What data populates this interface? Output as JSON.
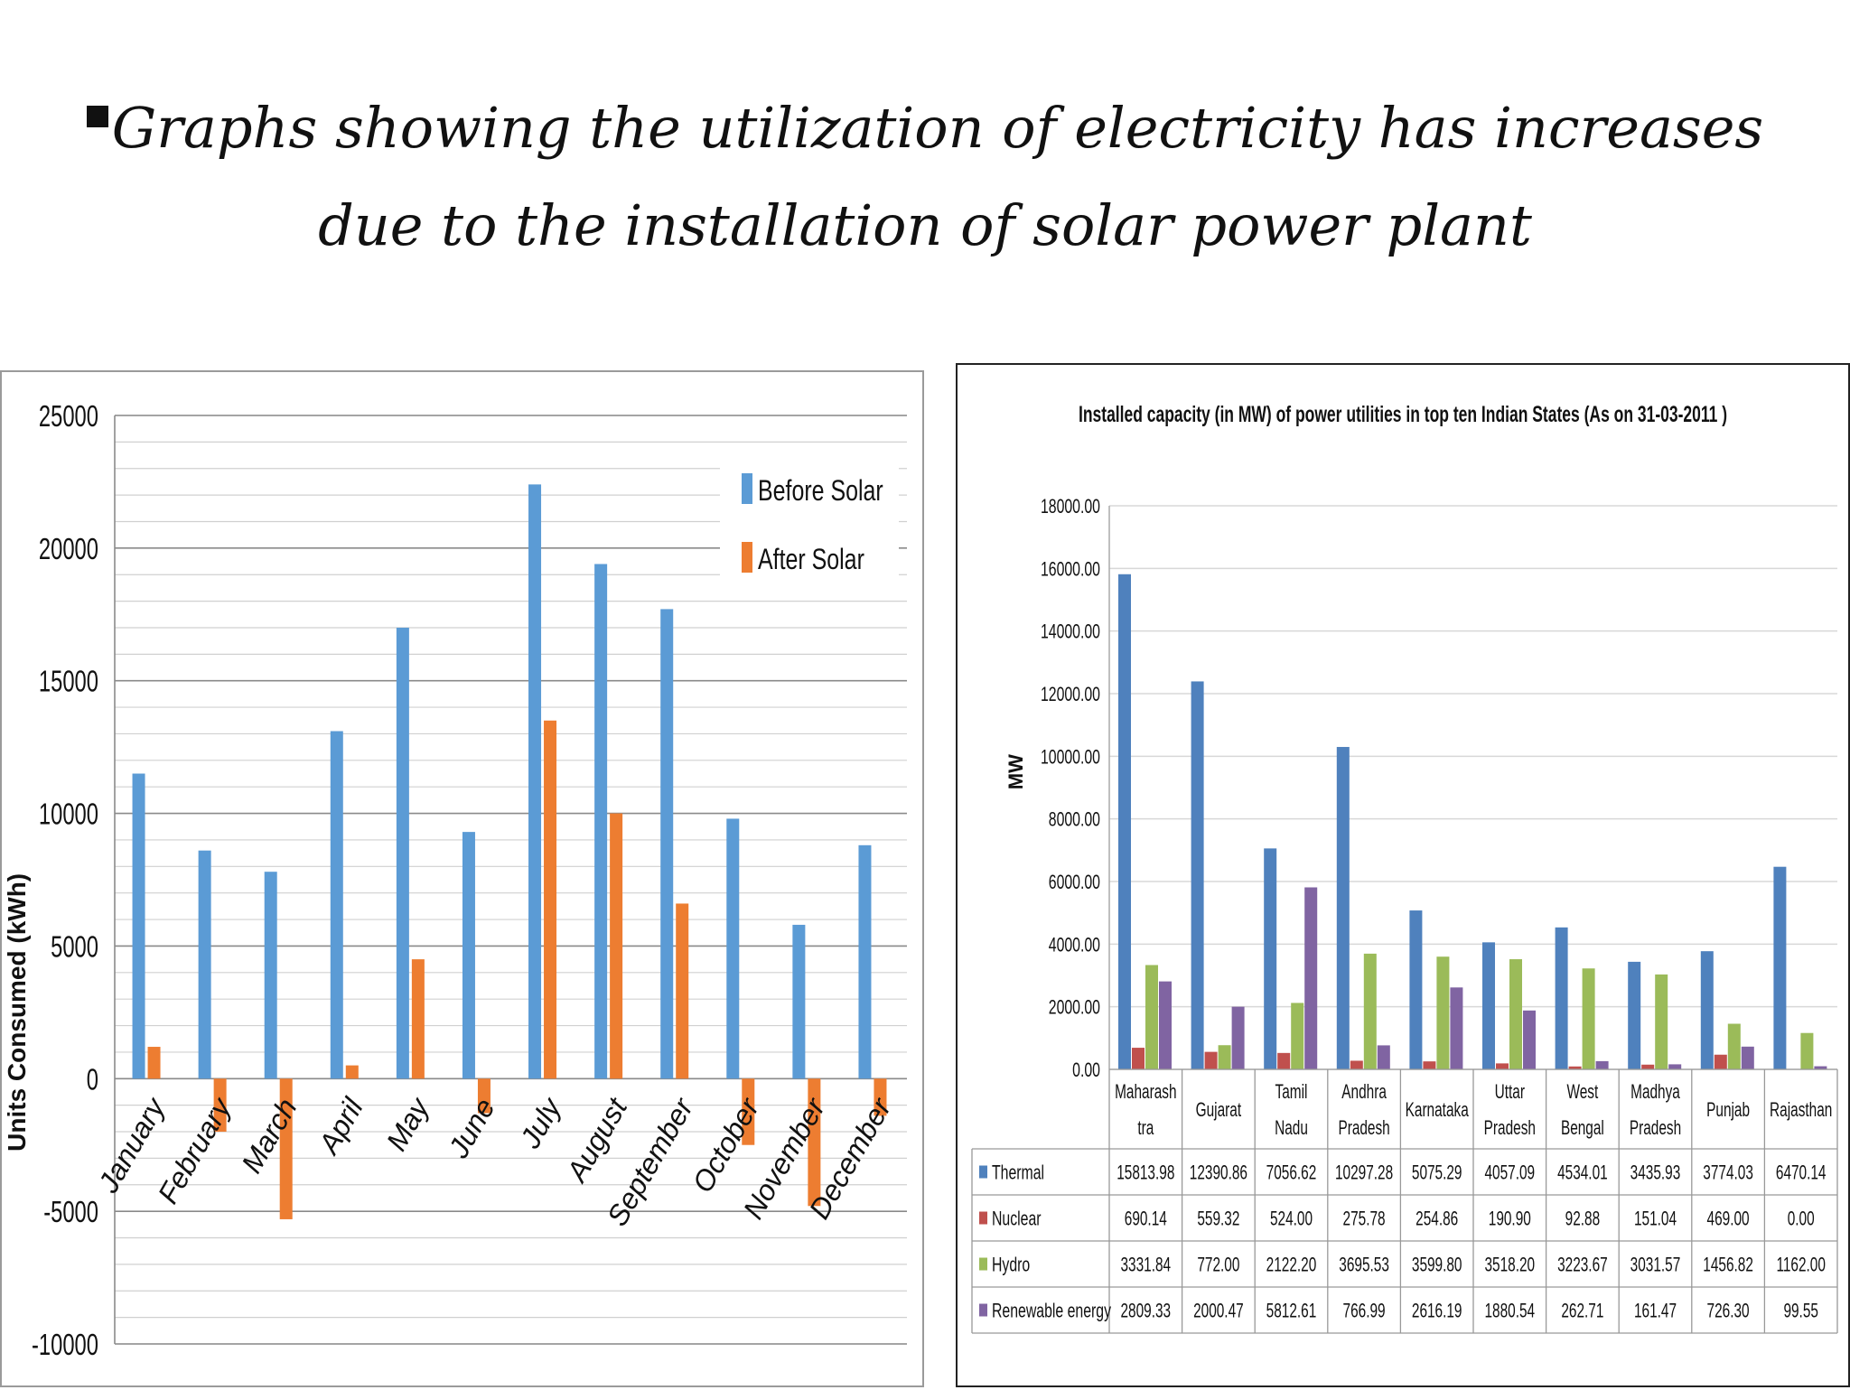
{
  "slide": {
    "title": "Graphs showing the utilization of electricity has increases due to the installation of solar power plant"
  },
  "chart_data": [
    {
      "type": "bar",
      "title": "",
      "xlabel": "",
      "ylabel": "Units Consumed (kWh)",
      "ylim": [
        -10000,
        25000
      ],
      "yticks": [
        "25000",
        "20000",
        "15000",
        "10000",
        "5000",
        "0",
        "-5000",
        "-10000"
      ],
      "grid": true,
      "legend_position": "top-right",
      "categories": [
        "January",
        "February",
        "March",
        "April",
        "May",
        "June",
        "July",
        "August",
        "September",
        "October",
        "November",
        "December"
      ],
      "series": [
        {
          "name": "Before Solar",
          "color": "#5b9bd5",
          "values": [
            11500,
            8600,
            7800,
            13100,
            17000,
            9300,
            22400,
            19400,
            17700,
            9800,
            5800,
            8800
          ]
        },
        {
          "name": "After Solar",
          "color": "#ed7d31",
          "values": [
            1200,
            -2000,
            -5300,
            500,
            4500,
            -1300,
            13500,
            10000,
            6600,
            -2500,
            -4800,
            -1400
          ]
        }
      ]
    },
    {
      "type": "bar",
      "title": "Installed capacity (in MW) of power utilities in top ten Indian States (As on 31-03-2011 )",
      "xlabel": "",
      "ylabel": "MW",
      "ylim": [
        0,
        18000
      ],
      "yticks": [
        "18000.00",
        "16000.00",
        "14000.00",
        "12000.00",
        "10000.00",
        "8000.00",
        "6000.00",
        "4000.00",
        "2000.00",
        "0.00"
      ],
      "grid": true,
      "legend_position": "data-table",
      "categories": [
        [
          "Maharash",
          "tra"
        ],
        [
          "Gujarat"
        ],
        [
          "Tamil",
          "Nadu"
        ],
        [
          "Andhra",
          "Pradesh"
        ],
        [
          "Karnataka"
        ],
        [
          "Uttar",
          "Pradesh"
        ],
        [
          "West",
          "Bengal"
        ],
        [
          "Madhya",
          "Pradesh"
        ],
        [
          "Punjab"
        ],
        [
          "Rajasthan"
        ]
      ],
      "series": [
        {
          "name": "Thermal",
          "color": "#4f81bd",
          "values": [
            15813.98,
            12390.86,
            7056.62,
            10297.28,
            5075.29,
            4057.09,
            4534.01,
            3435.93,
            3774.03,
            6470.14
          ],
          "labels": [
            "15813.98",
            "12390.86",
            "7056.62",
            "10297.28",
            "5075.29",
            "4057.09",
            "4534.01",
            "3435.93",
            "3774.03",
            "6470.14"
          ]
        },
        {
          "name": "Nuclear",
          "color": "#c0504d",
          "values": [
            690.14,
            559.32,
            524.0,
            275.78,
            254.86,
            190.9,
            92.88,
            151.04,
            469.0,
            0.0
          ],
          "labels": [
            "690.14",
            "559.32",
            "524.00",
            "275.78",
            "254.86",
            "190.90",
            "92.88",
            "151.04",
            "469.00",
            "0.00"
          ]
        },
        {
          "name": "Hydro",
          "color": "#9bbb59",
          "values": [
            3331.84,
            772.0,
            2122.2,
            3695.53,
            3599.8,
            3518.2,
            3223.67,
            3031.57,
            1456.82,
            1162.0
          ],
          "labels": [
            "3331.84",
            "772.00",
            "2122.20",
            "3695.53",
            "3599.80",
            "3518.20",
            "3223.67",
            "3031.57",
            "1456.82",
            "1162.00"
          ]
        },
        {
          "name": "Renewable energy",
          "color": "#8064a2",
          "values": [
            2809.33,
            2000.47,
            5812.61,
            766.99,
            2616.19,
            1880.54,
            262.71,
            161.47,
            726.3,
            99.55
          ],
          "labels": [
            "2809.33",
            "2000.47",
            "5812.61",
            "766.99",
            "2616.19",
            "1880.54",
            "262.71",
            "161.47",
            "726.30",
            "99.55"
          ]
        }
      ]
    }
  ]
}
